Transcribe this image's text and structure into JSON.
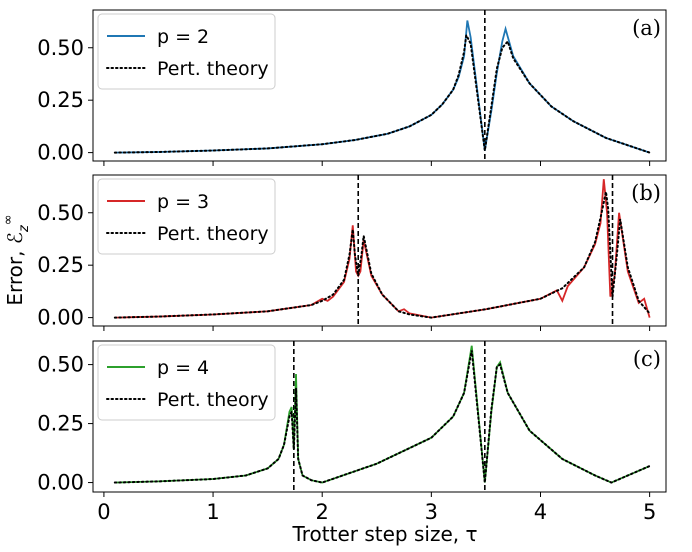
{
  "chart_data": {
    "type": "line",
    "xlabel": "Trotter step size, τ",
    "ylabel": "Error, ℰ_z^∞",
    "xlim": [
      -0.1,
      5.15
    ],
    "xticks": [
      0,
      1,
      2,
      3,
      4,
      5
    ],
    "xtick_labels": [
      "0",
      "1",
      "2",
      "3",
      "4",
      "5"
    ],
    "yticks": [
      0.0,
      0.25,
      0.5
    ],
    "ytick_labels": [
      "0.00",
      "0.25",
      "0.50"
    ],
    "legend_placement": "top-left",
    "panels": [
      {
        "label": "(a)",
        "color": "#1f77b4",
        "ylim": [
          -0.04,
          0.68
        ],
        "vlines": [
          3.49
        ],
        "legend": [
          "p = 2",
          "Pert. theory"
        ],
        "series": [
          {
            "name": "p = 2",
            "x": [
              0.1,
              0.5,
              1.0,
              1.5,
              2.0,
              2.3,
              2.6,
              2.8,
              3.0,
              3.1,
              3.2,
              3.25,
              3.3,
              3.33,
              3.36,
              3.49,
              3.55,
              3.6,
              3.65,
              3.68,
              3.75,
              3.9,
              4.1,
              4.3,
              4.6,
              4.8,
              5.0
            ],
            "y": [
              0.0,
              0.003,
              0.01,
              0.02,
              0.04,
              0.06,
              0.09,
              0.125,
              0.18,
              0.23,
              0.3,
              0.36,
              0.46,
              0.63,
              0.55,
              0.01,
              0.2,
              0.38,
              0.53,
              0.59,
              0.46,
              0.33,
              0.22,
              0.15,
              0.07,
              0.035,
              0.0
            ]
          },
          {
            "name": "Pert. theory",
            "x": [
              0.1,
              0.5,
              1.0,
              1.5,
              2.0,
              2.3,
              2.6,
              2.8,
              3.0,
              3.1,
              3.2,
              3.25,
              3.3,
              3.32,
              3.36,
              3.49,
              3.55,
              3.6,
              3.65,
              3.7,
              3.75,
              3.9,
              4.1,
              4.3,
              4.6,
              4.8,
              5.0
            ],
            "y": [
              0.0,
              0.003,
              0.01,
              0.02,
              0.04,
              0.06,
              0.09,
              0.125,
              0.18,
              0.23,
              0.3,
              0.37,
              0.48,
              0.56,
              0.52,
              0.01,
              0.22,
              0.4,
              0.5,
              0.53,
              0.45,
              0.33,
              0.22,
              0.15,
              0.07,
              0.035,
              0.0
            ]
          }
        ]
      },
      {
        "label": "(b)",
        "color": "#d62728",
        "ylim": [
          -0.04,
          0.68
        ],
        "vlines": [
          2.33,
          4.66
        ],
        "legend": [
          "p = 3",
          "Pert. theory"
        ],
        "series": [
          {
            "name": "p = 3",
            "x": [
              0.1,
              0.5,
              1.0,
              1.5,
              1.9,
              2.0,
              2.05,
              2.1,
              2.2,
              2.25,
              2.28,
              2.31,
              2.33,
              2.35,
              2.38,
              2.45,
              2.55,
              2.7,
              2.75,
              2.8,
              3.0,
              3.5,
              4.0,
              4.15,
              4.2,
              4.25,
              4.4,
              4.5,
              4.55,
              4.58,
              4.61,
              4.64,
              4.68,
              4.72,
              4.8,
              4.9,
              4.95,
              5.0
            ],
            "y": [
              0.0,
              0.005,
              0.015,
              0.03,
              0.06,
              0.09,
              0.08,
              0.1,
              0.17,
              0.28,
              0.44,
              0.22,
              0.2,
              0.22,
              0.37,
              0.2,
              0.11,
              0.03,
              0.04,
              0.02,
              0.0,
              0.04,
              0.09,
              0.13,
              0.08,
              0.15,
              0.24,
              0.35,
              0.45,
              0.66,
              0.5,
              0.1,
              0.2,
              0.5,
              0.22,
              0.07,
              0.09,
              0.0
            ]
          },
          {
            "name": "Pert. theory",
            "x": [
              0.1,
              0.5,
              1.0,
              1.5,
              1.9,
              2.0,
              2.1,
              2.2,
              2.25,
              2.28,
              2.3,
              2.33,
              2.36,
              2.38,
              2.45,
              2.55,
              2.7,
              2.8,
              3.0,
              3.5,
              4.0,
              4.2,
              4.4,
              4.5,
              4.56,
              4.6,
              4.62,
              4.66,
              4.7,
              4.73,
              4.8,
              4.9,
              5.0
            ],
            "y": [
              0.0,
              0.005,
              0.015,
              0.03,
              0.06,
              0.08,
              0.11,
              0.18,
              0.3,
              0.42,
              0.3,
              0.2,
              0.3,
              0.39,
              0.21,
              0.11,
              0.03,
              0.015,
              0.0,
              0.04,
              0.09,
              0.14,
              0.24,
              0.36,
              0.5,
              0.6,
              0.52,
              0.1,
              0.3,
              0.47,
              0.24,
              0.08,
              0.02
            ]
          }
        ]
      },
      {
        "label": "(c)",
        "color": "#2ca02c",
        "ylim": [
          -0.04,
          0.6
        ],
        "vlines": [
          1.74,
          3.49
        ],
        "legend": [
          "p = 4",
          "Pert. theory"
        ],
        "series": [
          {
            "name": "p = 4",
            "x": [
              0.1,
              0.5,
              1.0,
              1.3,
              1.5,
              1.6,
              1.65,
              1.7,
              1.72,
              1.74,
              1.76,
              1.78,
              1.82,
              1.9,
              2.0,
              2.5,
              3.0,
              3.2,
              3.3,
              3.37,
              3.49,
              3.55,
              3.6,
              3.63,
              3.7,
              3.9,
              4.2,
              4.5,
              4.65,
              4.8,
              5.0
            ],
            "y": [
              0.0,
              0.005,
              0.015,
              0.03,
              0.06,
              0.1,
              0.16,
              0.3,
              0.32,
              0.14,
              0.46,
              0.1,
              0.03,
              0.01,
              0.0,
              0.08,
              0.19,
              0.28,
              0.38,
              0.58,
              0.0,
              0.3,
              0.49,
              0.51,
              0.38,
              0.22,
              0.1,
              0.03,
              0.0,
              0.03,
              0.07
            ]
          },
          {
            "name": "Pert. theory",
            "x": [
              0.1,
              0.5,
              1.0,
              1.3,
              1.5,
              1.6,
              1.65,
              1.7,
              1.72,
              1.74,
              1.76,
              1.78,
              1.82,
              1.9,
              2.0,
              2.5,
              3.0,
              3.2,
              3.3,
              3.37,
              3.49,
              3.55,
              3.6,
              3.63,
              3.7,
              3.9,
              4.2,
              4.5,
              4.65,
              4.8,
              5.0
            ],
            "y": [
              0.0,
              0.005,
              0.015,
              0.03,
              0.06,
              0.1,
              0.16,
              0.28,
              0.3,
              0.14,
              0.4,
              0.1,
              0.03,
              0.01,
              0.0,
              0.08,
              0.19,
              0.28,
              0.38,
              0.56,
              0.0,
              0.31,
              0.49,
              0.5,
              0.38,
              0.22,
              0.1,
              0.03,
              0.0,
              0.03,
              0.07
            ]
          }
        ]
      }
    ]
  }
}
